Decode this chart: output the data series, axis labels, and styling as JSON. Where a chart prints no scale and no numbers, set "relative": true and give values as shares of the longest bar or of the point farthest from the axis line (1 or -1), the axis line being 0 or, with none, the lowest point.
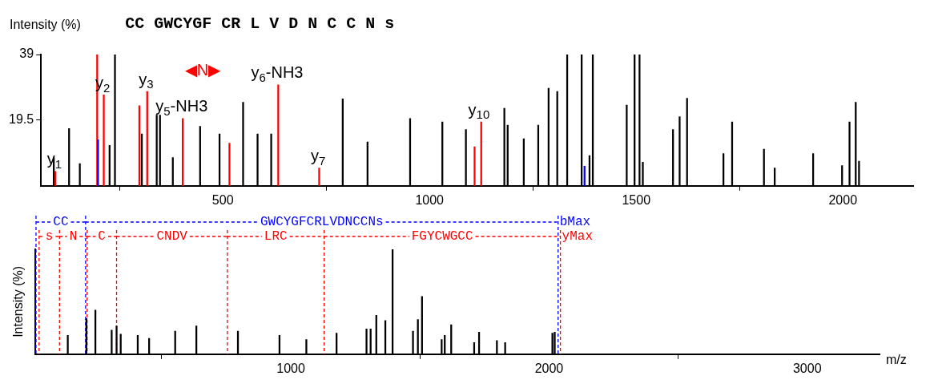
{
  "chart_data": [
    {
      "type": "bar",
      "title": "CC GWCYGF CR L V D N C C N s",
      "ylabel": "Intensity (%)",
      "xlim": [
        60,
        2170
      ],
      "xticks": [
        500,
        1000,
        1500,
        2000
      ],
      "ylim": [
        0,
        39
      ],
      "yticks": [
        19.5,
        39
      ],
      "series": [
        {
          "color": "#000000",
          "x": [
            91,
            128,
            154,
            226,
            239,
            304,
            340,
            348,
            379,
            445,
            492,
            549,
            584,
            617,
            790,
            850,
            953,
            1031,
            1088,
            1181,
            1189,
            1228,
            1263,
            1288,
            1309,
            1333,
            1368,
            1387,
            1395,
            1477,
            1496,
            1508,
            1516,
            1589,
            1605,
            1623,
            1711,
            1732,
            1809,
            1835,
            1928,
            1998,
            2016,
            2031,
            2039
          ],
          "values": [
            8.4,
            17,
            6.6,
            12,
            39,
            15.4,
            21,
            21,
            8.4,
            17.7,
            15.4,
            24.8,
            15.4,
            15.4,
            25.8,
            13,
            20,
            19,
            16.7,
            23,
            18,
            14,
            18,
            29,
            28,
            39,
            39,
            9,
            39,
            24,
            39,
            39,
            7,
            16.7,
            20.5,
            26,
            9.6,
            19,
            10.9,
            5.3,
            9.6,
            6,
            19,
            24.8,
            7.3
          ]
        },
        {
          "color": "#ff0000",
          "x": [
            95,
            196,
            212,
            298,
            317,
            403,
            516,
            634,
            733,
            1109,
            1125
          ],
          "values": [
            4.3,
            39,
            27,
            23.8,
            28,
            20,
            12.7,
            30,
            5.3,
            11.6,
            19
          ]
        },
        {
          "color": "#0000ff",
          "x": [
            198,
            1375
          ],
          "values": [
            13.7,
            5.8
          ]
        }
      ],
      "annotations": [
        {
          "text": "y$_{1}$",
          "x": 95,
          "y": 4.3
        },
        {
          "text": "y$_{2}$",
          "x": 212,
          "y": 27
        },
        {
          "text": "y$_{3}$",
          "x": 317,
          "y": 28
        },
        "◀N▶",
        {
          "text": "y$_{5}$-NH3",
          "x": 403,
          "y": 20
        },
        {
          "text": "y$_{6}$-NH3",
          "x": 634,
          "y": 30
        },
        {
          "text": "y$_{7}$",
          "x": 733,
          "y": 5.3
        },
        {
          "text": "y$_{10}$",
          "x": 1125,
          "y": 19
        }
      ]
    },
    {
      "type": "bar",
      "relative": true,
      "ylabel": "Intensity (%)",
      "xlabel": "m/z",
      "xlim": [
        10,
        3280
      ],
      "xticks": [
        1000,
        2000,
        3000
      ],
      "series": [
        {
          "color": "#000000",
          "x": [
            136,
            208,
            243,
            306,
            325,
            341,
            407,
            451,
            552,
            634,
            795,
            956,
            1060,
            1177,
            1293,
            1309,
            1331,
            1366,
            1394,
            1473,
            1492,
            1508,
            1584,
            1596,
            1621,
            1710,
            1729,
            1798,
            1830,
            2013,
            2022
          ],
          "values": [
            0.18,
            0.34,
            0.42,
            0.23,
            0.27,
            0.19,
            0.18,
            0.15,
            0.22,
            0.27,
            0.22,
            0.18,
            0.14,
            0.2,
            0.24,
            0.24,
            0.37,
            0.32,
            1,
            0.22,
            0.33,
            0.55,
            0.14,
            0.18,
            0.28,
            0.11,
            0.21,
            0.13,
            0.11,
            0.2,
            0.21
          ]
        }
      ],
      "ref_lines": [
        {
          "axis": "x",
          "value": 13,
          "label": "CC",
          "color": "#0000ff",
          "line_style": "dashed"
        },
        {
          "axis": "x",
          "value": 205,
          "label": "GWCYGFCRLVDNCCNs",
          "color": "#0000ff",
          "line_style": "dashed"
        },
        {
          "axis": "x",
          "value": 2035,
          "label": "bMax",
          "color": "#0000ff",
          "line_style": "dashed"
        },
        {
          "axis": "x",
          "value": 25,
          "label": "s",
          "color": "#ff0000",
          "line_style": "dashed"
        },
        {
          "axis": "x",
          "value": 104,
          "label": "N",
          "color": "#ff0000",
          "line_style": "dashed"
        },
        {
          "axis": "x",
          "value": 211,
          "label": "C",
          "color": "#ff0000",
          "line_style": "dashed"
        },
        {
          "axis": "x",
          "value": 325,
          "label": "CNDV",
          "color": "#ff0000",
          "line_style": "dashed"
        },
        {
          "axis": "x",
          "value": 754,
          "label": "LRC",
          "color": "#ff0000",
          "line_style": "dashed"
        },
        {
          "axis": "x",
          "value": 1129,
          "label": "FGYCWGCC",
          "color": "#ff0000",
          "line_style": "dashed"
        },
        {
          "axis": "x",
          "value": 2044,
          "label": "yMax",
          "color": "#ff0000",
          "line_style": "dashed"
        }
      ]
    }
  ]
}
